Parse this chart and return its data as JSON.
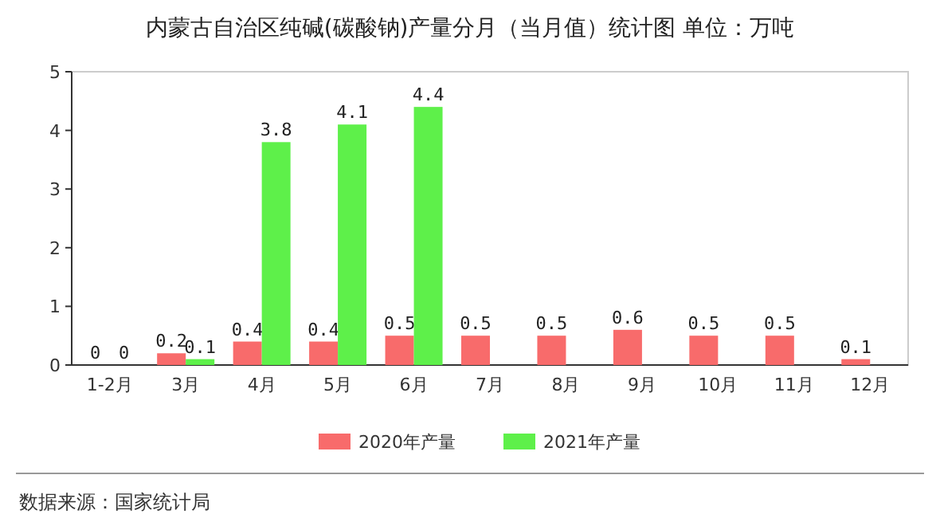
{
  "chart_data": {
    "type": "bar",
    "title": "内蒙古自治区纯碱(碳酸钠)产量分月（当月值）统计图  单位：万吨",
    "categories": [
      "1-2月",
      "3月",
      "4月",
      "5月",
      "6月",
      "7月",
      "8月",
      "9月",
      "10月",
      "11月",
      "12月"
    ],
    "series": [
      {
        "name": "2020年产量",
        "color": "#f86b6b",
        "values": [
          0,
          0.2,
          0.4,
          0.4,
          0.5,
          0.5,
          0.5,
          0.6,
          0.5,
          0.5,
          0.1
        ]
      },
      {
        "name": "2021年产量",
        "color": "#5ef04a",
        "values": [
          0,
          0.1,
          3.8,
          4.1,
          4.4,
          null,
          null,
          null,
          null,
          null,
          null
        ]
      }
    ],
    "ylim": [
      0,
      5
    ],
    "yticks": [
      0,
      1,
      2,
      3,
      4,
      5
    ],
    "grid": false,
    "legend": "bottom",
    "data_labels": true,
    "annotations": [
      "数据来源：国家统计局"
    ]
  }
}
